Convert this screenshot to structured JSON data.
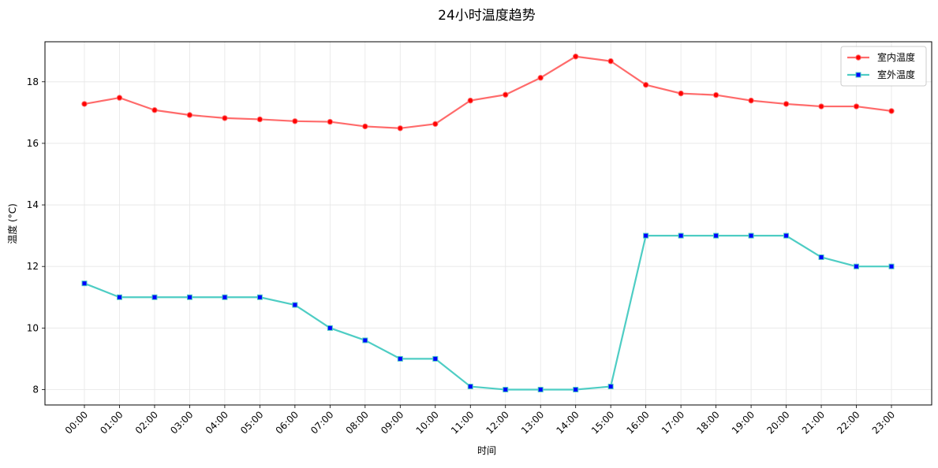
{
  "chart_data": {
    "type": "line",
    "title": "24小时温度趋势",
    "xlabel": "时间",
    "ylabel": "温度 (°C)",
    "categories": [
      "00:00",
      "01:00",
      "02:00",
      "03:00",
      "04:00",
      "05:00",
      "06:00",
      "07:00",
      "08:00",
      "09:00",
      "10:00",
      "11:00",
      "12:00",
      "13:00",
      "14:00",
      "15:00",
      "16:00",
      "17:00",
      "18:00",
      "19:00",
      "20:00",
      "21:00",
      "22:00",
      "23:00"
    ],
    "ylim": [
      7.5,
      19.3
    ],
    "yticks": [
      8,
      10,
      12,
      14,
      16,
      18
    ],
    "grid": true,
    "legend_position": "top-right",
    "series": [
      {
        "name": "室内温度",
        "color": "#ff6b6b",
        "marker_color": "#ff0000",
        "marker": "circle",
        "values": [
          17.28,
          17.48,
          17.08,
          16.92,
          16.82,
          16.78,
          16.72,
          16.7,
          16.55,
          16.49,
          16.63,
          17.39,
          17.58,
          18.13,
          18.82,
          18.67,
          17.9,
          17.62,
          17.57,
          17.39,
          17.28,
          17.2,
          17.2,
          17.05
        ]
      },
      {
        "name": "室外温度",
        "color": "#4ecdc4",
        "marker_color": "#0000ff",
        "marker": "square",
        "values": [
          11.45,
          11.0,
          11.0,
          11.0,
          11.0,
          11.0,
          10.75,
          10.0,
          9.6,
          9.0,
          9.0,
          8.1,
          8.0,
          8.0,
          8.0,
          8.1,
          13.0,
          13.0,
          13.0,
          13.0,
          13.0,
          12.3,
          12.0,
          12.0
        ]
      }
    ]
  }
}
